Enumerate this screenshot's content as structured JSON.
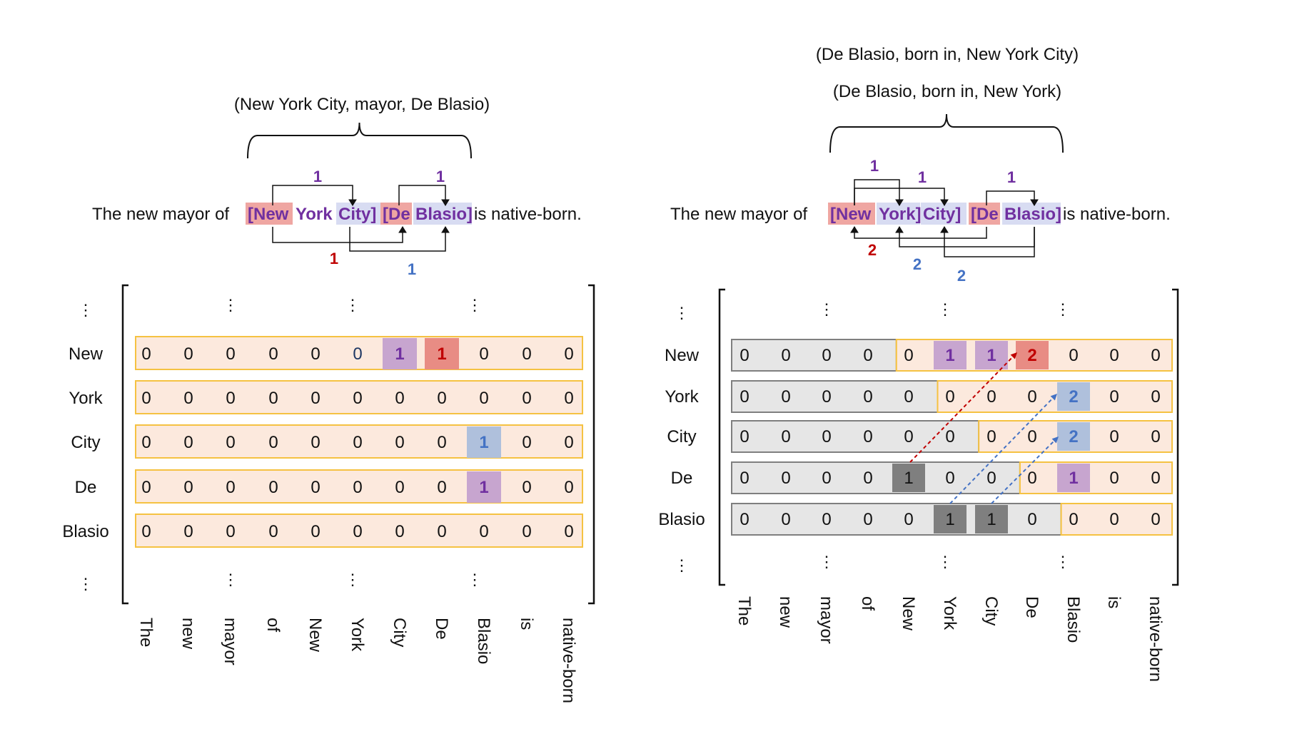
{
  "colors": {
    "purple": "#7030A0",
    "red": "#C00000",
    "blue": "#4472C4",
    "row_fill": "#FCE9DD",
    "row_border": "#F5C242",
    "grey_fill": "#E6E6E6",
    "grey_border": "#7F7F7F",
    "dark_cell": "#7F7F7F",
    "purple_cell": "#C7A5CF",
    "red_cell": "#E88C84",
    "blue_cell": "#AFC0DC",
    "pink_highlight": "#EFA6A2",
    "lavender_highlight": "#D8DCF2"
  },
  "left": {
    "triples": [
      "(New York City, mayor, De Blasio)"
    ],
    "sentence": {
      "prefix": "The new mayor of ",
      "tokens": [
        {
          "text": "[New",
          "color": "purple",
          "bg": "pink"
        },
        {
          "text": "York",
          "color": "purple",
          "bg": "none"
        },
        {
          "text": "City]",
          "color": "purple",
          "bg": "lavender"
        },
        {
          "text": "[De",
          "color": "purple",
          "bg": "pink"
        },
        {
          "text": "Blasio]",
          "color": "purple",
          "bg": "lavender"
        }
      ],
      "suffix": " is native-born."
    },
    "arc_labels": [
      {
        "text": "1",
        "color": "purple"
      },
      {
        "text": "1",
        "color": "purple"
      },
      {
        "text": "1",
        "color": "red"
      },
      {
        "text": "1",
        "color": "blue"
      }
    ],
    "row_labels": [
      "New",
      "York",
      "City",
      "De",
      "Blasio"
    ],
    "col_labels": [
      "The",
      "new",
      "mayor",
      "of",
      "New",
      "York",
      "City",
      "De",
      "Blasio",
      "is",
      "native-born"
    ],
    "matrix": [
      [
        "0",
        "0",
        "0",
        "0",
        "0",
        "0",
        "1",
        "1",
        "0",
        "0",
        "0"
      ],
      [
        "0",
        "0",
        "0",
        "0",
        "0",
        "0",
        "0",
        "0",
        "0",
        "0",
        "0"
      ],
      [
        "0",
        "0",
        "0",
        "0",
        "0",
        "0",
        "0",
        "0",
        "1",
        "0",
        "0"
      ],
      [
        "0",
        "0",
        "0",
        "0",
        "0",
        "0",
        "0",
        "0",
        "1",
        "0",
        "0"
      ],
      [
        "0",
        "0",
        "0",
        "0",
        "0",
        "0",
        "0",
        "0",
        "0",
        "0",
        "0"
      ]
    ],
    "ellipsis": "⋮"
  },
  "right": {
    "triples": [
      "(De Blasio, born in, New York City)",
      "(De Blasio, born in, New York)"
    ],
    "sentence": {
      "prefix": "The new mayor of ",
      "tokens": [
        {
          "text": "[New",
          "color": "purple",
          "bg": "pink"
        },
        {
          "text": "York]",
          "color": "purple",
          "bg": "lavender"
        },
        {
          "text": "City]",
          "color": "purple",
          "bg": "lavender"
        },
        {
          "text": "[De",
          "color": "purple",
          "bg": "pink"
        },
        {
          "text": "Blasio]",
          "color": "purple",
          "bg": "lavender"
        }
      ],
      "suffix": " is native-born."
    },
    "arc_labels": [
      {
        "text": "1",
        "color": "purple"
      },
      {
        "text": "1",
        "color": "purple"
      },
      {
        "text": "1",
        "color": "purple"
      },
      {
        "text": "2",
        "color": "red"
      },
      {
        "text": "2",
        "color": "blue"
      },
      {
        "text": "2",
        "color": "blue"
      }
    ],
    "row_labels": [
      "New",
      "York",
      "City",
      "De",
      "Blasio"
    ],
    "col_labels": [
      "The",
      "new",
      "mayor",
      "of",
      "New",
      "York",
      "City",
      "De",
      "Blasio",
      "is",
      "native-born"
    ],
    "matrix": [
      [
        "0",
        "0",
        "0",
        "0",
        "0",
        "1",
        "1",
        "2",
        "0",
        "0",
        "0"
      ],
      [
        "0",
        "0",
        "0",
        "0",
        "0",
        "0",
        "0",
        "0",
        "2",
        "0",
        "0"
      ],
      [
        "0",
        "0",
        "0",
        "0",
        "0",
        "0",
        "0",
        "0",
        "2",
        "0",
        "0"
      ],
      [
        "0",
        "0",
        "0",
        "0",
        "1",
        "0",
        "0",
        "0",
        "1",
        "0",
        "0"
      ],
      [
        "0",
        "0",
        "0",
        "0",
        "0",
        "1",
        "1",
        "0",
        "0",
        "0",
        "0"
      ]
    ],
    "ellipsis": "⋮"
  }
}
